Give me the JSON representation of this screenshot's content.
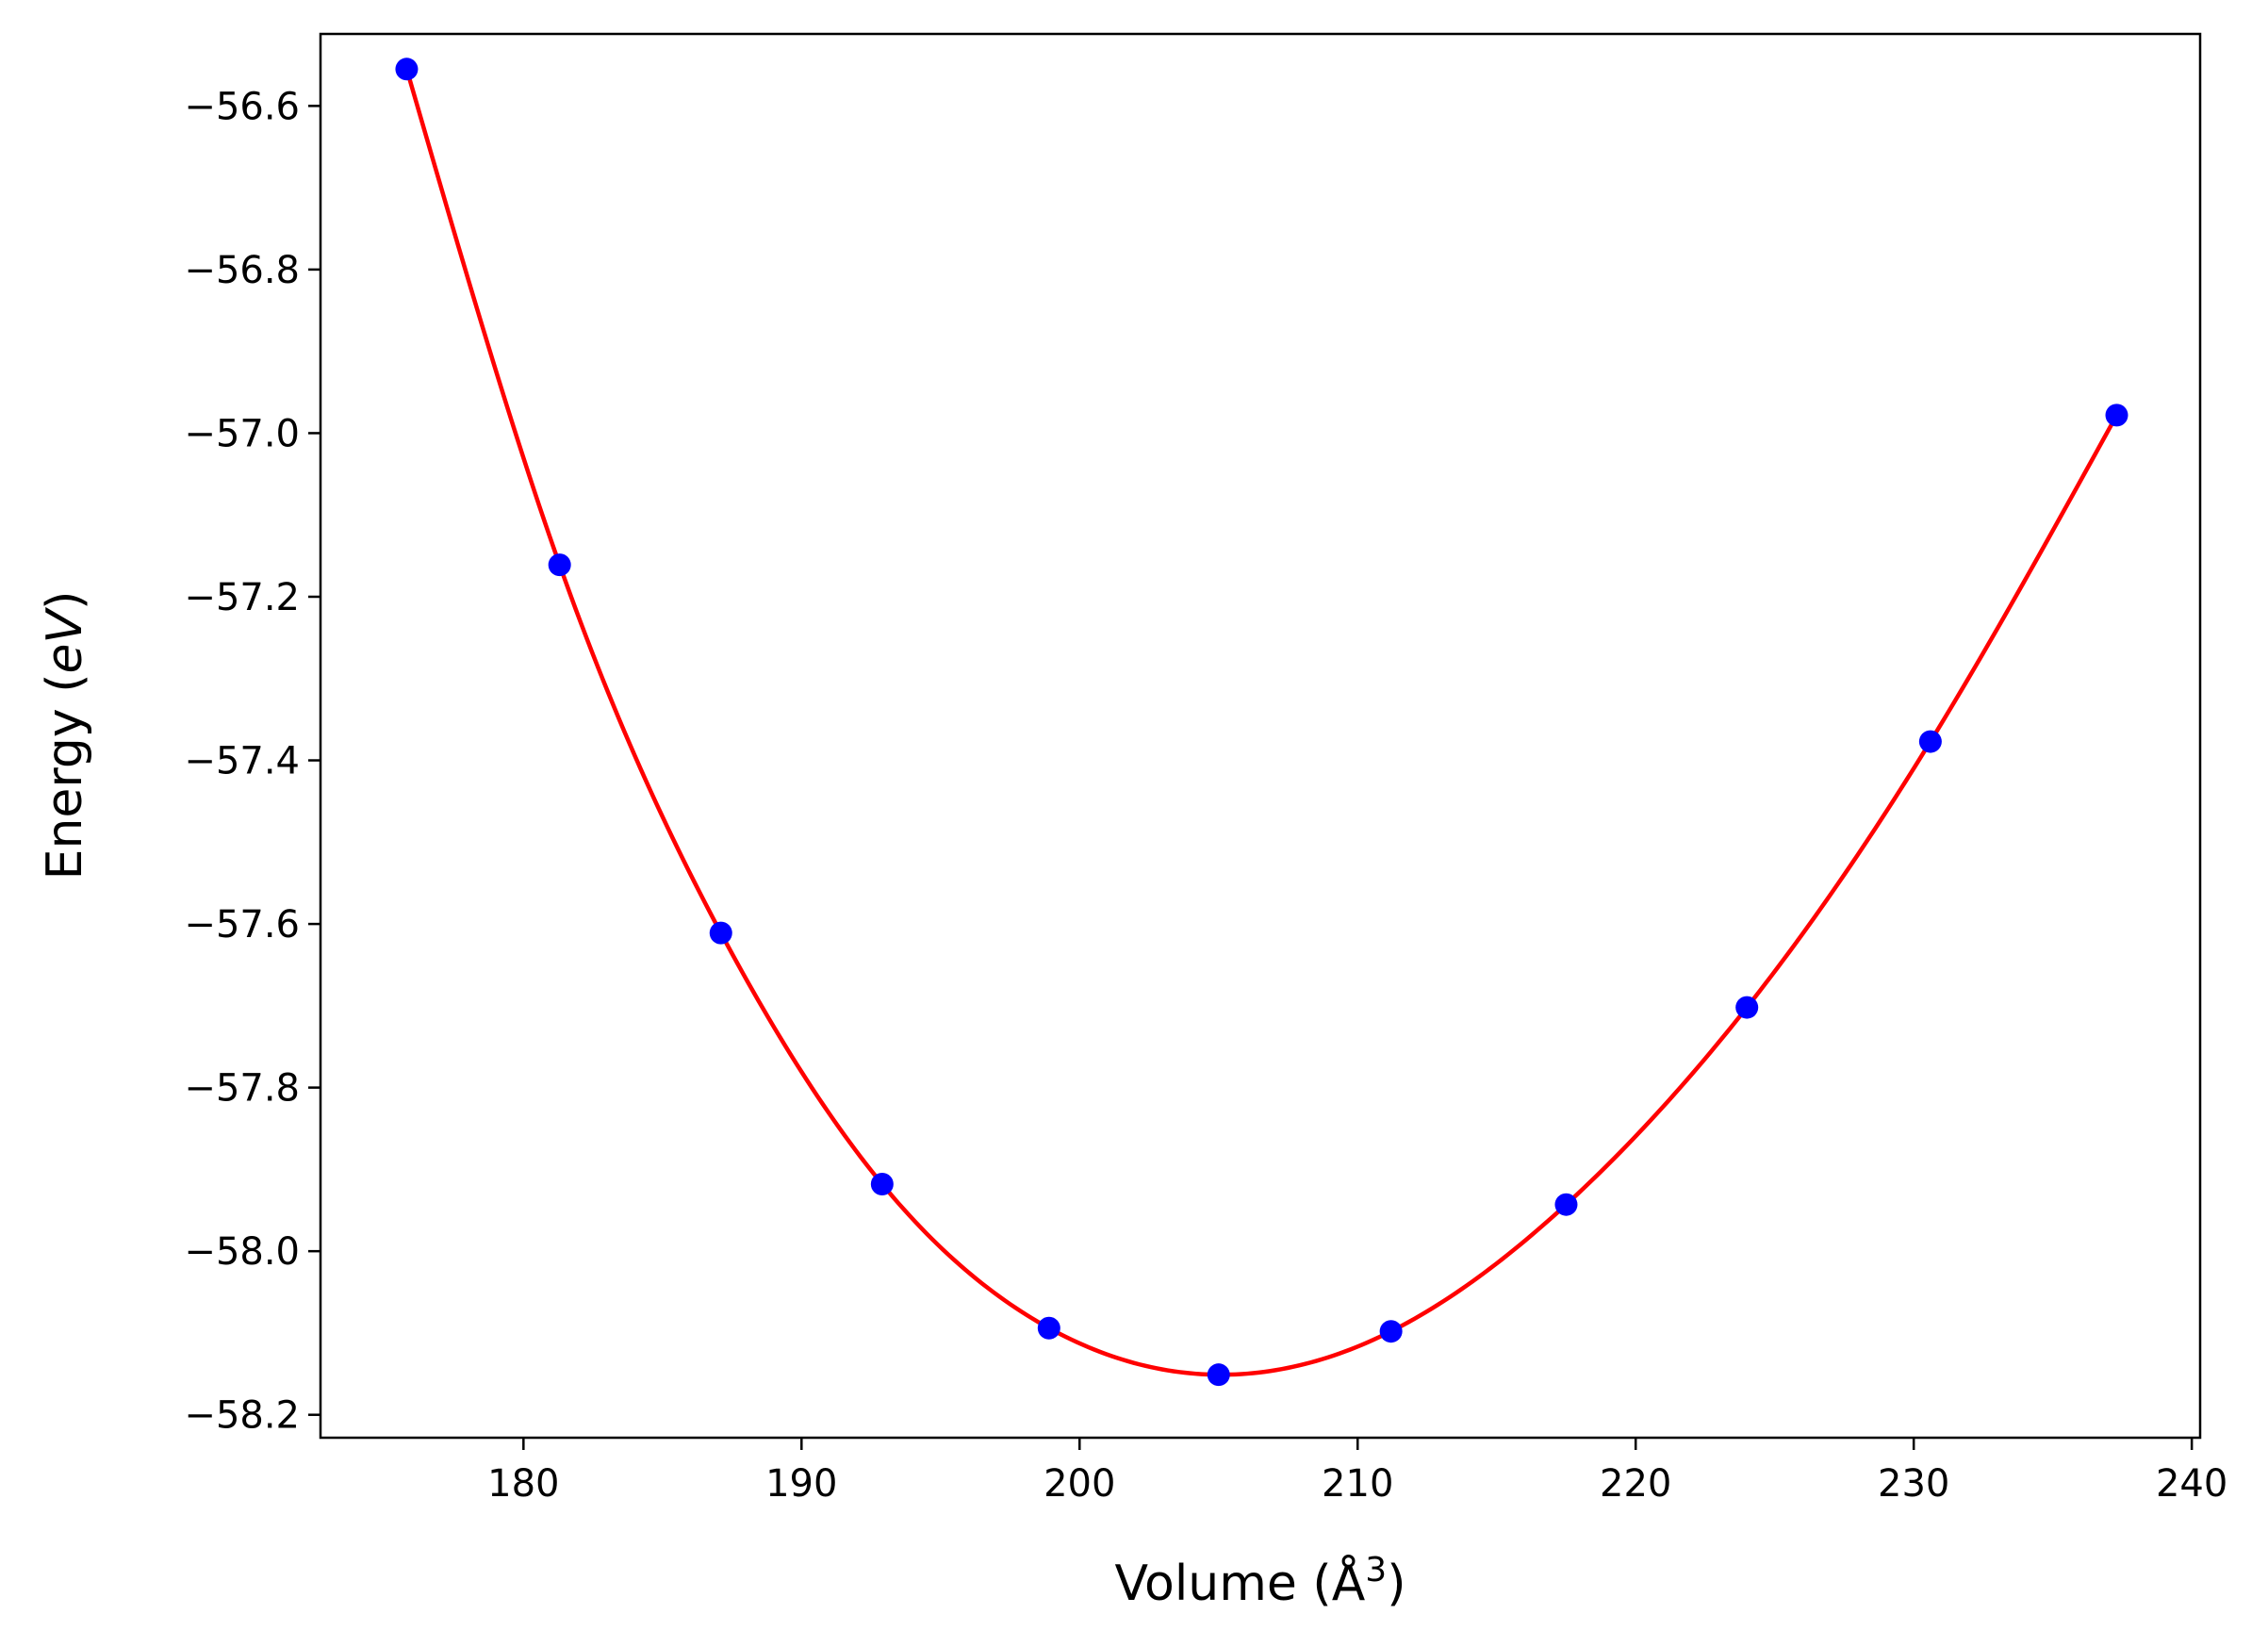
{
  "chart_data": {
    "type": "scatter",
    "xlabel": "Volume (Å",
    "xlabel_sup": "3",
    "xlabel_close": ")",
    "ylabel": "Energy (",
    "ylabel_unit": "eV",
    "ylabel_close": ")",
    "xlim": [
      172.7,
      240.3
    ],
    "ylim": [
      -58.228,
      -56.512
    ],
    "xticks": [
      180,
      190,
      200,
      210,
      220,
      230,
      240
    ],
    "xtick_labels": [
      "180",
      "190",
      "200",
      "210",
      "220",
      "230",
      "240"
    ],
    "yticks": [
      -56.6,
      -56.8,
      -57.0,
      -57.2,
      -57.4,
      -57.6,
      -57.8,
      -58.0,
      -58.2
    ],
    "ytick_labels": [
      "−56.6",
      "−56.8",
      "−57.0",
      "−57.2",
      "−57.4",
      "−57.6",
      "−57.8",
      "−58.0",
      "−58.2"
    ],
    "grid": false,
    "series": [
      {
        "kind": "points",
        "color": "#0000ff",
        "x": [
          175.8,
          181.3,
          187.1,
          192.9,
          198.9,
          205.0,
          211.2,
          217.5,
          224.0,
          230.6,
          237.3
        ],
        "y": [
          -56.555,
          -57.161,
          -57.611,
          -57.918,
          -58.094,
          -58.151,
          -58.098,
          -57.943,
          -57.702,
          -57.377,
          -56.978
        ]
      },
      {
        "kind": "fit-curve",
        "color": "#ff0000",
        "x": [
          175.8,
          181.3,
          187.1,
          192.9,
          198.9,
          205.0,
          211.2,
          217.5,
          224.0,
          230.6,
          237.3
        ],
        "y": [
          -56.555,
          -57.161,
          -57.611,
          -57.918,
          -58.094,
          -58.151,
          -58.098,
          -57.943,
          -57.702,
          -57.377,
          -56.978
        ]
      }
    ]
  }
}
